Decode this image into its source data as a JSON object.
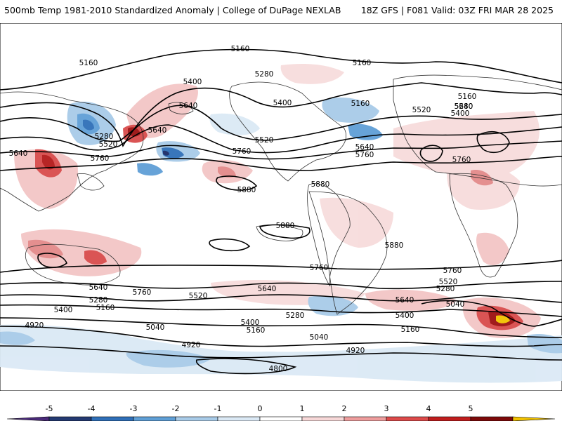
{
  "header": {
    "title": "500mb Temp 1981-2010 Standardized Anomaly | College of DuPage NEXLAB",
    "run_info": "18Z GFS | F081 Valid: 03Z FRI MAR 28 2025"
  },
  "contour_labels": [
    "5160",
    "5280",
    "5400",
    "5520",
    "5640",
    "5760",
    "5880",
    "5040",
    "4920",
    "4800"
  ],
  "colorbar": {
    "ticks": [
      "-5",
      "-4",
      "-3",
      "-2",
      "-1",
      "0",
      "1",
      "2",
      "3",
      "4",
      "5"
    ],
    "colors": [
      "#4a2a7a",
      "#243a72",
      "#2f6fb8",
      "#5f9fd6",
      "#a8cbe8",
      "#dbe9f5",
      "#ffffff",
      "#f7d8d8",
      "#ee9d9d",
      "#dd4a4a",
      "#c01d1d",
      "#7d0a0a",
      "#f2c200"
    ]
  }
}
